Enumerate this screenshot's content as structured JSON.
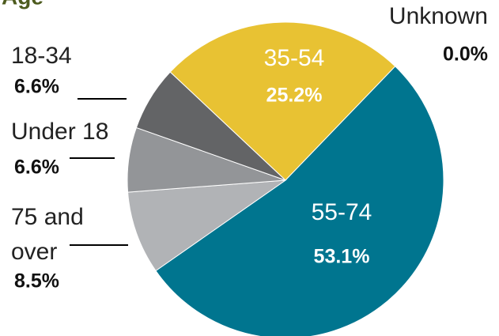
{
  "chart_data": {
    "type": "pie",
    "title": "Age",
    "categories": [
      "35-54",
      "55-74",
      "75 and over",
      "Under 18",
      "18-34",
      "Unknown"
    ],
    "values": [
      25.2,
      53.1,
      8.5,
      6.6,
      6.6,
      0.0
    ],
    "value_labels": [
      "25.2%",
      "53.1%",
      "8.5%",
      "6.6%",
      "6.6%",
      "0.0%"
    ],
    "colors": [
      "#e8c233",
      "#00758f",
      "#b1b3b6",
      "#939598",
      "#636466",
      "#cccccc"
    ]
  }
}
